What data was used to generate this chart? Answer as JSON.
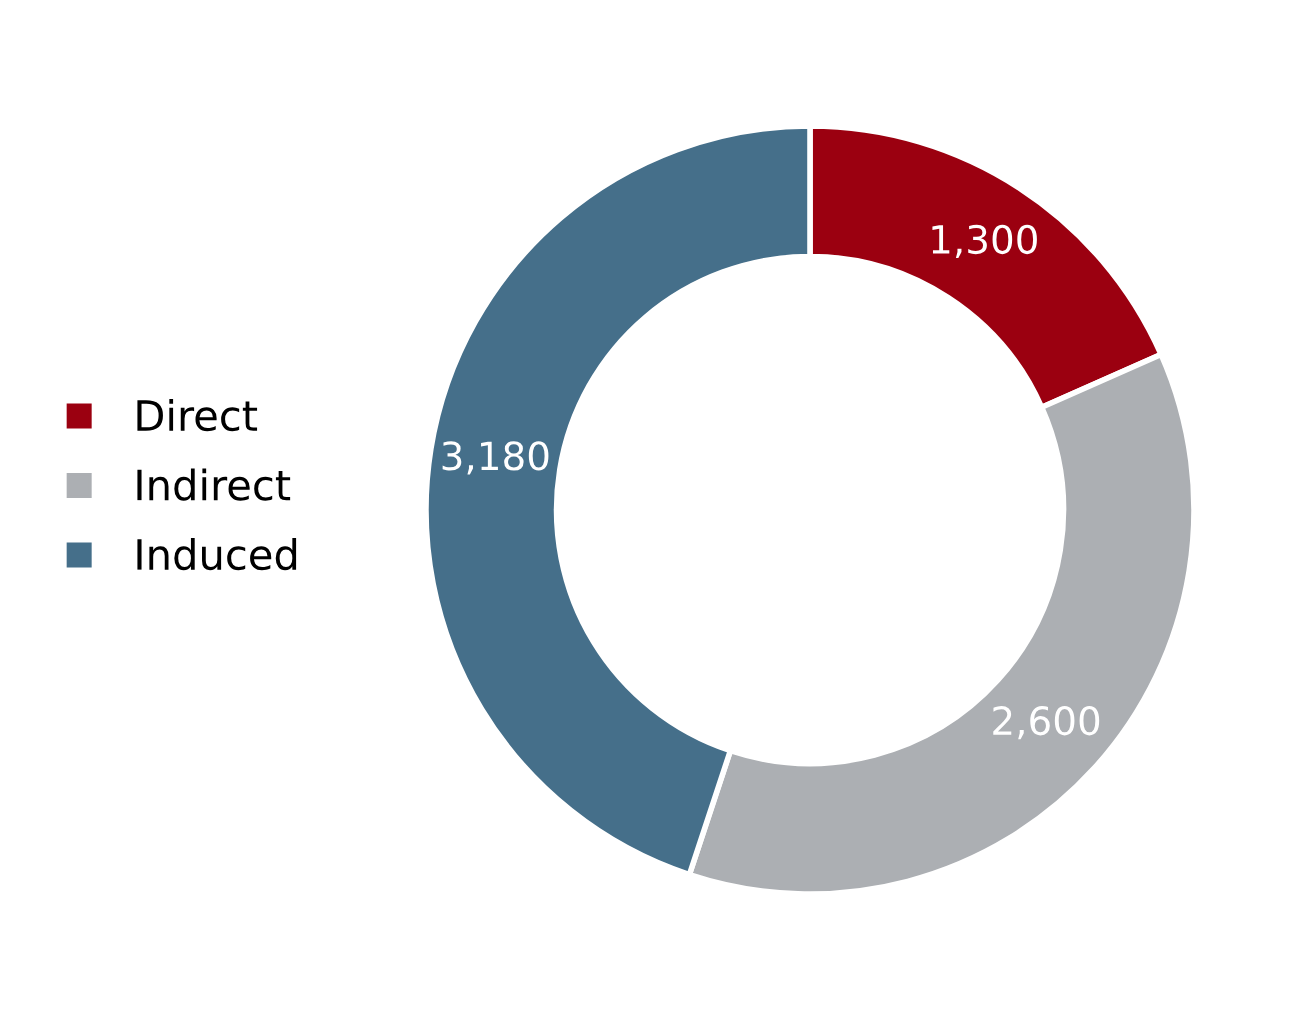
{
  "chart_data": {
    "type": "donut",
    "categories": [
      "Direct",
      "Indirect",
      "Induced"
    ],
    "values": [
      1300,
      2600,
      3180
    ],
    "colors": [
      "#9b0010",
      "#acafb3",
      "#456f8a"
    ],
    "value_labels": [
      "1,300",
      "2,600",
      "3,180"
    ],
    "legend": "left"
  }
}
